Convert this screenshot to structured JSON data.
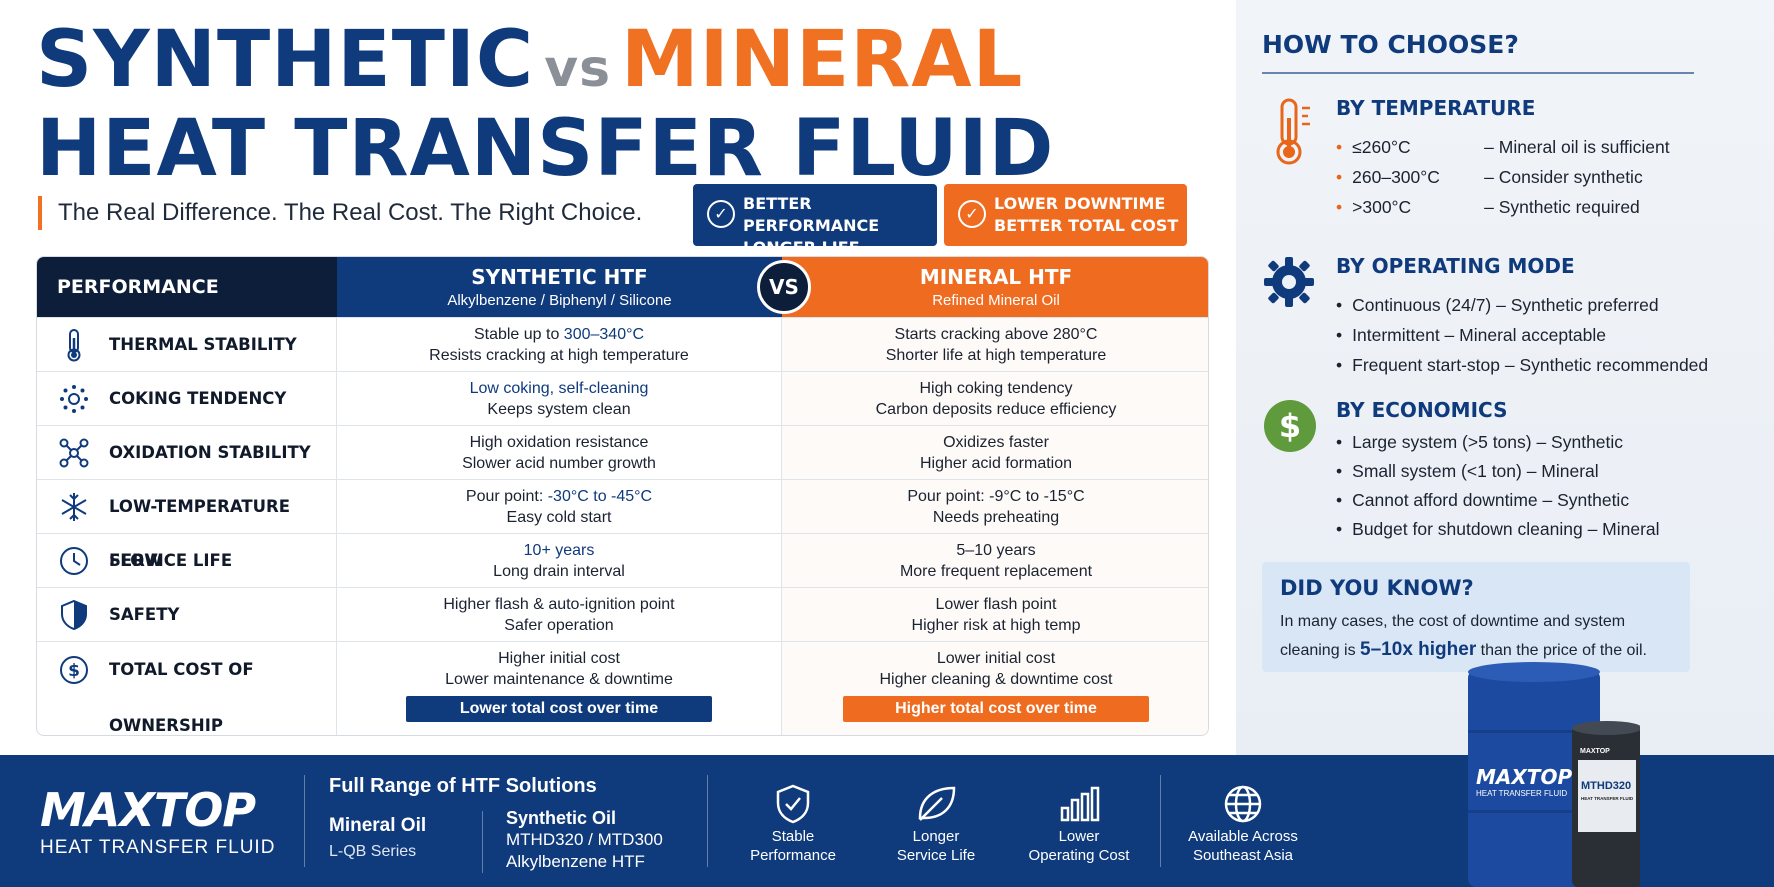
{
  "title": {
    "word1": "SYNTHETIC",
    "vs": "vs",
    "word2": "MINERAL",
    "line2": "HEAT TRANSFER FLUID"
  },
  "tagline": "The Real Difference. The Real Cost. The Right Choice.",
  "pills": [
    {
      "line1": "BETTER PERFORMANCE",
      "line2": "LONGER LIFE",
      "color": "#0f3a7c"
    },
    {
      "line1": "LOWER DOWNTIME",
      "line2": "BETTER TOTAL COST",
      "color": "#ee6b1f"
    }
  ],
  "table": {
    "header": {
      "performance": "PERFORMANCE",
      "synthetic_title": "SYNTHETIC HTF",
      "synthetic_sub": "Alkylbenzene / Biphenyl / Silicone",
      "vs": "VS",
      "mineral_title": "MINERAL HTF",
      "mineral_sub": "Refined Mineral Oil"
    },
    "rows": [
      {
        "icon": "thermometer-icon",
        "label": "THERMAL STABILITY",
        "syn1_pre": "Stable up to ",
        "syn1_hl": "300–340°C",
        "syn2": "Resists cracking at high temperature",
        "min1": "Starts cracking above 280°C",
        "min2": "Shorter life at high temperature"
      },
      {
        "icon": "coking-icon",
        "label": "COKING TENDENCY",
        "syn1_pre": "",
        "syn1_hl": "Low coking, self-cleaning",
        "syn2": "Keeps system clean",
        "min1": "High coking tendency",
        "min2": "Carbon deposits reduce efficiency"
      },
      {
        "icon": "molecule-icon",
        "label": "OXIDATION STABILITY",
        "syn1_pre": "High oxidation resistance",
        "syn1_hl": "",
        "syn2": "Slower acid number growth",
        "min1": "Oxidizes faster",
        "min2": "Higher acid formation"
      },
      {
        "icon": "snowflake-icon",
        "label": "LOW-TEMPERATURE FLOW",
        "syn1_pre": "Pour point: ",
        "syn1_hl": "-30°C to -45°C",
        "syn2": "Easy cold start",
        "min1": "Pour point: -9°C to -15°C",
        "min2": "Needs preheating"
      },
      {
        "icon": "clock-icon",
        "label": "SERVICE LIFE",
        "syn1_pre": "",
        "syn1_hl": "10+ years",
        "syn2": "Long drain interval",
        "min1": "5–10 years",
        "min2": "More frequent replacement"
      },
      {
        "icon": "shield-icon",
        "label": "SAFETY",
        "syn1_pre": "Higher flash & auto-ignition point",
        "syn1_hl": "",
        "syn2": "Safer operation",
        "min1": "Lower flash point",
        "min2": "Higher risk at high temp"
      },
      {
        "icon": "dollar-icon",
        "label": "TOTAL COST OF OWNERSHIP",
        "syn1_pre": "Higher initial cost",
        "syn1_hl": "",
        "syn2": "Lower maintenance & downtime",
        "min1": "Lower initial cost",
        "min2": "Higher cleaning & downtime cost"
      }
    ],
    "syn_summary": "Lower total cost over time",
    "min_summary": "Higher total cost over time"
  },
  "right": {
    "heading": "HOW TO CHOOSE?",
    "temperature": {
      "title": "BY TEMPERATURE",
      "icon": "thermometer-icon",
      "items": [
        {
          "range": "≤260°C",
          "advice": "–  Mineral oil is sufficient"
        },
        {
          "range": "260–300°C",
          "advice": "–  Consider synthetic"
        },
        {
          "range": ">300°C",
          "advice": "–  Synthetic required"
        }
      ]
    },
    "mode": {
      "title": "BY OPERATING MODE",
      "icon": "gear-icon",
      "items": [
        "Continuous (24/7)  –  Synthetic preferred",
        "Intermittent  –  Mineral acceptable",
        "Frequent start-stop  –  Synthetic recommended"
      ]
    },
    "economics": {
      "title": "BY ECONOMICS",
      "icon": "dollar-coin-icon",
      "items": [
        "Large system (>5 tons)   –  Synthetic",
        "Small system (<1 ton)     –  Mineral",
        "Cannot afford downtime  –  Synthetic",
        "Budget for shutdown cleaning  –  Mineral"
      ]
    },
    "did_you_know": {
      "title": "DID YOU KNOW?",
      "text1": "In many cases, the cost of downtime and system",
      "text2_pre": "cleaning is ",
      "text2_hl": "5–10x higher",
      "text2_post": " than the price of the oil."
    }
  },
  "footer": {
    "logo": "MAXTOP",
    "logo_sub": "HEAT TRANSFER FLUID",
    "range_title": "Full Range of HTF Solutions",
    "mineral_name": "Mineral Oil",
    "mineral_series": "L-QB Series",
    "synthetic_name": "Synthetic Oil",
    "synthetic_series": "MTHD320 / MTD300",
    "synthetic_type": "Alkylbenzene HTF",
    "features": [
      {
        "icon": "shield-check-icon",
        "line1": "Stable",
        "line2": "Performance"
      },
      {
        "icon": "leaf-icon",
        "line1": "Longer",
        "line2": "Service Life"
      },
      {
        "icon": "bar-chart-icon",
        "line1": "Lower",
        "line2": "Operating Cost"
      },
      {
        "icon": "globe-icon",
        "line1": "Available Across",
        "line2": "Southeast Asia"
      }
    ]
  },
  "drums": {
    "big_logo": "MAXTOP",
    "big_sub": "HEAT TRANSFER FLUID",
    "small_logo": "MAXTOP",
    "small_product": "MTHD320",
    "small_sub": "HEAT TRANSFER FLUID"
  }
}
